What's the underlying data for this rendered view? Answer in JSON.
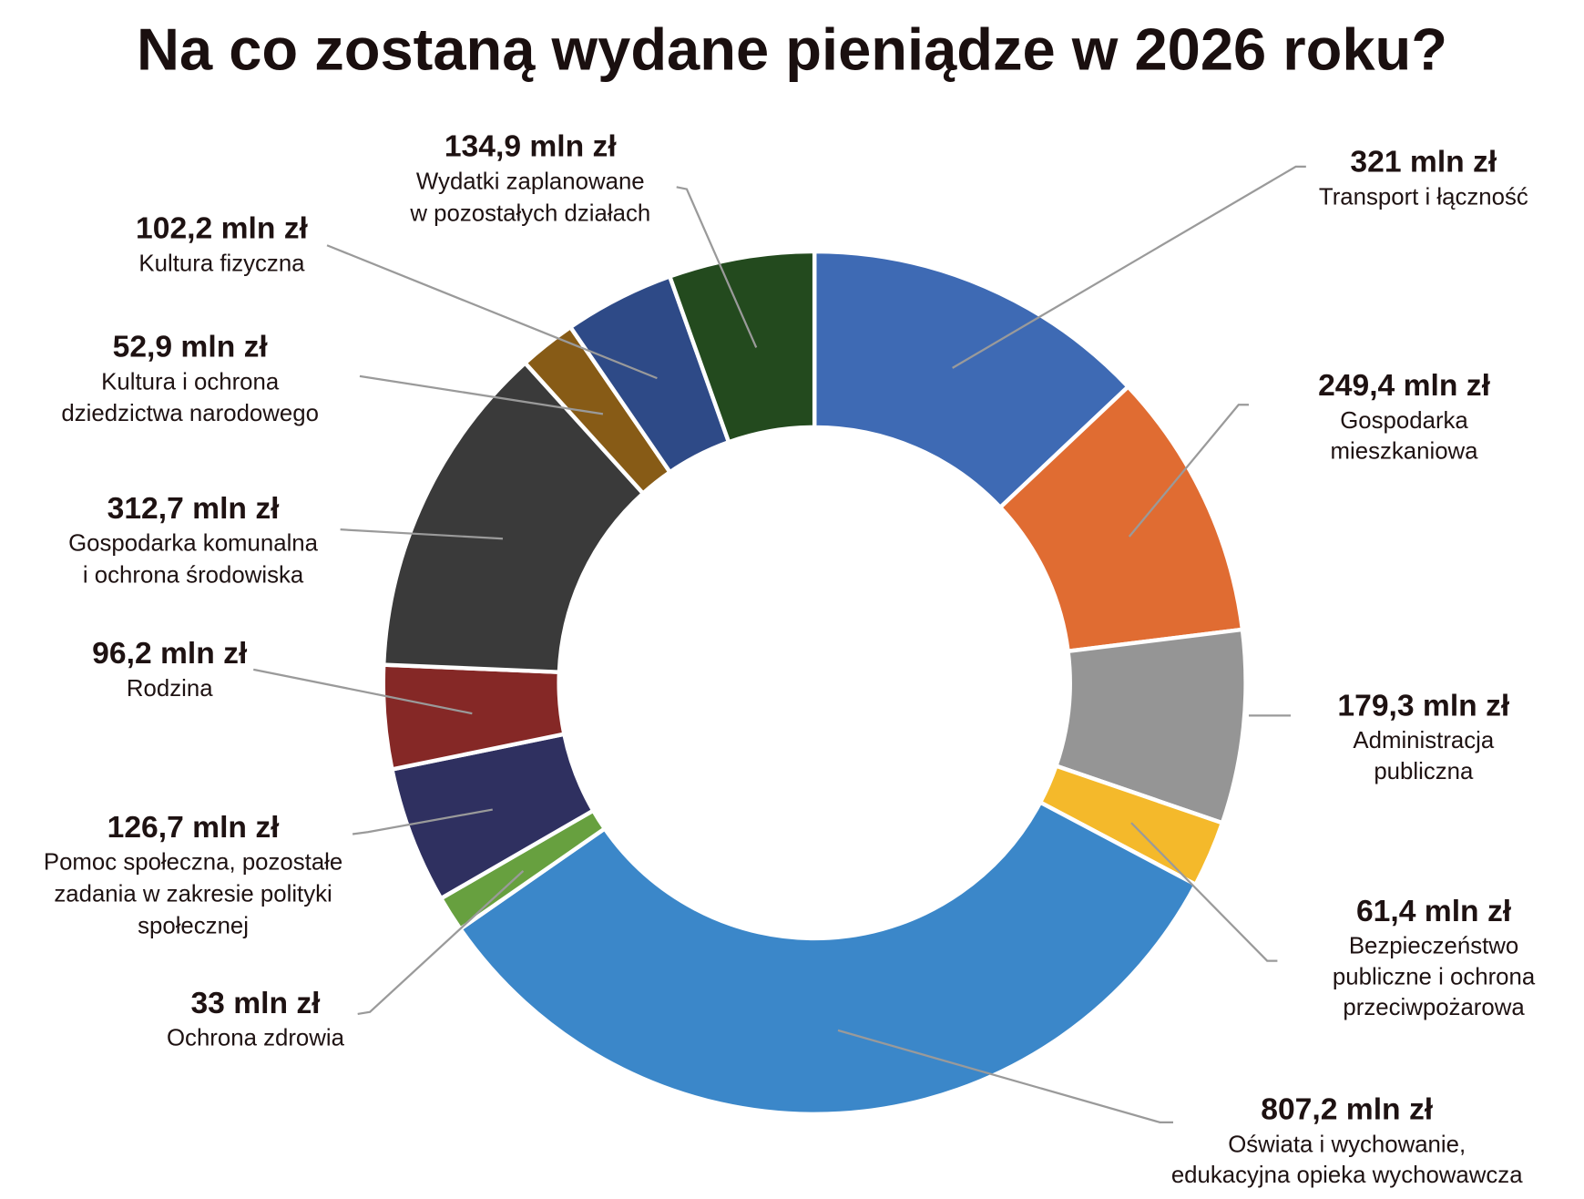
{
  "chart_data": {
    "type": "pie",
    "variant": "donut",
    "title": "Na co zostaną wydane pieniądze w 2026 roku?",
    "unit": "mln zł",
    "slices": [
      {
        "value_label": "321 mln zł",
        "value": 321,
        "name": [
          "Transport i łączność"
        ],
        "color": "#3e6ab4"
      },
      {
        "value_label": "249,4 mln zł",
        "value": 249.4,
        "name": [
          "Gospodarka",
          "mieszkaniowa"
        ],
        "color": "#e06c32"
      },
      {
        "value_label": "179,3 mln zł",
        "value": 179.3,
        "name": [
          "Administracja",
          "publiczna"
        ],
        "color": "#959595"
      },
      {
        "value_label": "61,4 mln zł",
        "value": 61.4,
        "name": [
          "Bezpieczeństwo",
          "publiczne i ochrona",
          "przeciwpożarowa"
        ],
        "color": "#f4b92b"
      },
      {
        "value_label": "807,2 mln zł",
        "value": 807.2,
        "name": [
          "Oświata i wychowanie,",
          "edukacyjna opieka wychowawcza"
        ],
        "color": "#3b87c9"
      },
      {
        "value_label": "33 mln zł",
        "value": 33,
        "name": [
          "Ochrona zdrowia"
        ],
        "color": "#67a03f"
      },
      {
        "value_label": "126,7 mln zł",
        "value": 126.7,
        "name": [
          "Pomoc społeczna, pozostałe",
          "zadania w zakresie polityki",
          "społecznej"
        ],
        "color": "#2f3060"
      },
      {
        "value_label": "96,2 mln zł",
        "value": 96.2,
        "name": [
          "Rodzina"
        ],
        "color": "#852826"
      },
      {
        "value_label": "312,7 mln zł",
        "value": 312.7,
        "name": [
          "Gospodarka komunalna",
          "i ochrona środowiska"
        ],
        "color": "#3a3a3a"
      },
      {
        "value_label": "52,9 mln zł",
        "value": 52.9,
        "name": [
          "Kultura i ochrona",
          "dziedzictwa narodowego"
        ],
        "color": "#875b16"
      },
      {
        "value_label": "102,2 mln zł",
        "value": 102.2,
        "name": [
          "Kultura fizyczna"
        ],
        "color": "#2e4a87"
      },
      {
        "value_label": "134,9 mln zł",
        "value": 134.9,
        "name": [
          "Wydatki zaplanowane",
          "w pozostałych działach"
        ],
        "color": "#234a1e"
      }
    ]
  }
}
